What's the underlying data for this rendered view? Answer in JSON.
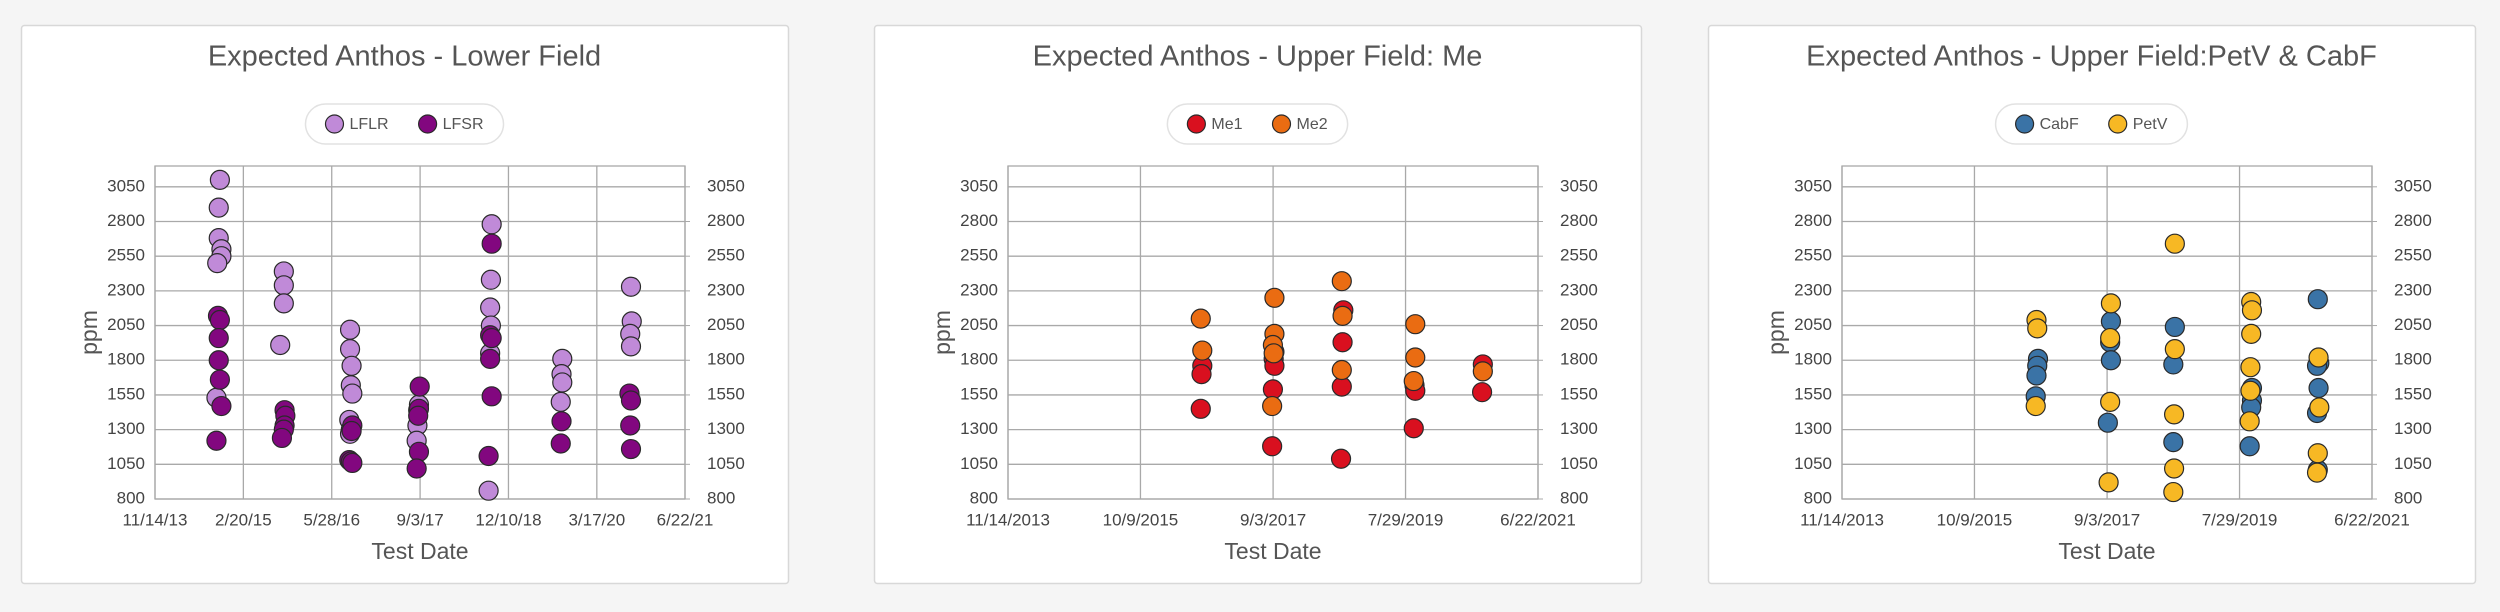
{
  "chart_data": [
    {
      "type": "scatter",
      "title": "Expected Anthos - Lower Field",
      "x_label": "Test Date",
      "y_label": "ppm",
      "grid": true,
      "legend": "top",
      "xlim": [
        "2013-11-14",
        "2021-06-22"
      ],
      "xticks": [
        {
          "value": "2013-11-14",
          "label": "11/14/13"
        },
        {
          "value": "2015-02-20",
          "label": "2/20/15"
        },
        {
          "value": "2016-05-28",
          "label": "5/28/16"
        },
        {
          "value": "2017-09-03",
          "label": "9/3/17"
        },
        {
          "value": "2018-12-10",
          "label": "12/10/18"
        },
        {
          "value": "2020-03-17",
          "label": "3/17/20"
        },
        {
          "value": "2021-06-22",
          "label": "6/22/21"
        }
      ],
      "ylim": [
        800,
        3200
      ],
      "yticks": [
        800,
        1050,
        1300,
        1550,
        1800,
        2050,
        2300,
        2550,
        2800,
        3050
      ],
      "y2lim": [
        800,
        3200
      ],
      "y2ticks": [
        800,
        1050,
        1300,
        1550,
        1800,
        2050,
        2300,
        2550,
        2800,
        3050
      ],
      "series": [
        {
          "name": "LFLR",
          "color": "#c08ad8",
          "x": [
            "2014-10-20",
            "2014-10-14",
            "2014-10-14",
            "2014-10-28",
            "2014-10-28",
            "2014-10-06",
            "2014-10-02",
            "2015-09-20",
            "2015-09-20",
            "2015-09-20",
            "2015-09-01",
            "2016-09-01",
            "2016-09-01",
            "2016-09-09",
            "2016-09-05",
            "2016-09-13",
            "2016-08-28",
            "2016-09-05",
            "2016-09-01",
            "2017-08-28",
            "2017-08-24",
            "2017-08-20",
            "2017-08-16",
            "2018-09-13",
            "2018-09-09",
            "2018-09-05",
            "2018-09-09",
            "2018-09-05",
            "2018-08-28",
            "2019-09-18",
            "2019-09-14",
            "2019-09-18",
            "2019-09-10",
            "2020-09-12",
            "2020-09-16",
            "2020-09-08",
            "2020-09-12"
          ],
          "values": [
            3100,
            2900,
            2680,
            2600,
            2550,
            2500,
            1530,
            2440,
            2340,
            2210,
            1910,
            2020,
            1880,
            1760,
            1620,
            1560,
            1370,
            1300,
            1270,
            1480,
            1440,
            1330,
            1220,
            2780,
            2380,
            2180,
            2050,
            1850,
            860,
            1810,
            1700,
            1640,
            1500,
            2330,
            2080,
            1990,
            1900
          ]
        },
        {
          "name": "LFSR",
          "color": "#82077f",
          "x": [
            "2014-10-10",
            "2014-10-20",
            "2014-10-14",
            "2014-10-14",
            "2014-10-20",
            "2014-10-28",
            "2014-10-02",
            "2015-09-24",
            "2015-09-28",
            "2015-09-24",
            "2015-09-20",
            "2015-09-10",
            "2016-09-13",
            "2016-09-09",
            "2016-08-28",
            "2016-09-05",
            "2016-09-13",
            "2017-09-01",
            "2017-08-28",
            "2017-08-24",
            "2017-08-28",
            "2017-08-16",
            "2018-09-13",
            "2018-09-05",
            "2018-09-13",
            "2018-09-05",
            "2018-09-13",
            "2018-08-28",
            "2019-09-14",
            "2019-09-10",
            "2020-09-04",
            "2020-09-12",
            "2020-09-08",
            "2020-09-12"
          ],
          "values": [
            2120,
            2090,
            1960,
            1800,
            1660,
            1470,
            1220,
            1440,
            1400,
            1330,
            1300,
            1240,
            1330,
            1290,
            1080,
            1070,
            1060,
            1610,
            1450,
            1400,
            1140,
            1020,
            2640,
            1980,
            1960,
            1810,
            1540,
            1110,
            1360,
            1200,
            1560,
            1510,
            1330,
            1160
          ]
        }
      ]
    },
    {
      "type": "scatter",
      "title": "Expected Anthos - Upper Field: Me",
      "x_label": "Test Date",
      "y_label": "ppm",
      "grid": true,
      "legend": "top",
      "xlim": [
        "2013-11-14",
        "2021-06-22"
      ],
      "xticks": [
        {
          "value": "2013-11-14",
          "label": "11/14/2013"
        },
        {
          "value": "2015-10-09",
          "label": "10/9/2015"
        },
        {
          "value": "2017-09-03",
          "label": "9/3/2017"
        },
        {
          "value": "2019-07-29",
          "label": "7/29/2019"
        },
        {
          "value": "2021-06-22",
          "label": "6/22/2021"
        }
      ],
      "ylim": [
        800,
        3200
      ],
      "yticks": [
        800,
        1050,
        1300,
        1550,
        1800,
        2050,
        2300,
        2550,
        2800,
        3050
      ],
      "y2lim": [
        800,
        3200
      ],
      "y2ticks": [
        800,
        1050,
        1300,
        1550,
        1800,
        2050,
        2300,
        2550,
        2800,
        3050
      ],
      "series": [
        {
          "name": "Me1",
          "color": "#d9101f",
          "x": [
            "2016-08-28",
            "2016-08-24",
            "2016-08-20",
            "2017-09-10",
            "2017-09-06",
            "2017-09-10",
            "2017-09-02",
            "2017-08-29",
            "2018-09-06",
            "2018-09-02",
            "2018-08-29",
            "2018-08-25",
            "2019-09-14",
            "2019-09-18",
            "2019-09-10",
            "2020-09-06",
            "2020-09-02"
          ],
          "values": [
            1760,
            1700,
            1450,
            1860,
            1810,
            1760,
            1590,
            1180,
            2160,
            1930,
            1610,
            1090,
            1620,
            1580,
            1310,
            1770,
            1570
          ]
        },
        {
          "name": "Me2",
          "color": "#ea6c12",
          "x": [
            "2016-08-20",
            "2016-08-28",
            "2017-09-10",
            "2017-09-10",
            "2017-09-02",
            "2017-09-06",
            "2017-08-29",
            "2018-08-29",
            "2018-09-02",
            "2018-08-29",
            "2019-09-18",
            "2019-09-18",
            "2019-09-10",
            "2020-09-06"
          ],
          "values": [
            2100,
            1870,
            2250,
            1990,
            1910,
            1850,
            1470,
            2370,
            2120,
            1730,
            2060,
            1820,
            1650,
            1720
          ]
        }
      ]
    },
    {
      "type": "scatter",
      "title": "Expected Anthos - Upper Field:PetV & CabF",
      "x_label": "Test Date",
      "y_label": "ppm",
      "grid": true,
      "legend": "top",
      "xlim": [
        "2013-11-14",
        "2021-06-22"
      ],
      "xticks": [
        {
          "value": "2013-11-14",
          "label": "11/14/2013"
        },
        {
          "value": "2015-10-09",
          "label": "10/9/2015"
        },
        {
          "value": "2017-09-03",
          "label": "9/3/2017"
        },
        {
          "value": "2019-07-29",
          "label": "7/29/2019"
        },
        {
          "value": "2021-06-22",
          "label": "6/22/2021"
        }
      ],
      "ylim": [
        800,
        3200
      ],
      "yticks": [
        800,
        1050,
        1300,
        1550,
        1800,
        2050,
        2300,
        2550,
        2800,
        3050
      ],
      "y2lim": [
        800,
        3200
      ],
      "y2ticks": [
        800,
        1050,
        1300,
        1550,
        1800,
        2050,
        2300,
        2550,
        2800,
        3050
      ],
      "series": [
        {
          "name": "CabF",
          "color": "#3a73a6",
          "x": [
            "2016-09-06",
            "2016-09-02",
            "2016-08-29",
            "2016-08-25",
            "2017-09-23",
            "2017-09-19",
            "2017-09-23",
            "2017-09-07",
            "2018-08-24",
            "2018-08-16",
            "2018-08-16",
            "2019-10-02",
            "2019-10-02",
            "2019-09-28",
            "2019-09-20",
            "2020-09-11",
            "2020-09-19",
            "2020-09-07",
            "2020-09-15",
            "2020-09-07",
            "2020-09-11"
          ],
          "values": [
            1810,
            1760,
            1690,
            1540,
            2080,
            1930,
            1800,
            1350,
            2040,
            1770,
            1210,
            1600,
            1510,
            1460,
            1180,
            2240,
            1780,
            1760,
            1600,
            1420,
            1010
          ]
        },
        {
          "name": "PetV",
          "color": "#f7b824",
          "x": [
            "2016-08-29",
            "2016-09-02",
            "2016-08-25",
            "2017-09-23",
            "2017-09-19",
            "2017-09-19",
            "2017-09-11",
            "2018-08-24",
            "2018-08-24",
            "2018-08-20",
            "2018-08-20",
            "2018-08-16",
            "2019-09-28",
            "2019-10-02",
            "2019-09-28",
            "2019-09-24",
            "2019-09-24",
            "2019-09-20",
            "2020-09-15",
            "2020-09-19",
            "2020-09-11",
            "2020-09-07"
          ],
          "values": [
            2090,
            2030,
            1470,
            2210,
            1960,
            1500,
            920,
            2640,
            1880,
            1410,
            1020,
            850,
            2220,
            2160,
            1990,
            1750,
            1580,
            1360,
            1820,
            1460,
            1130,
            990
          ]
        }
      ]
    }
  ]
}
